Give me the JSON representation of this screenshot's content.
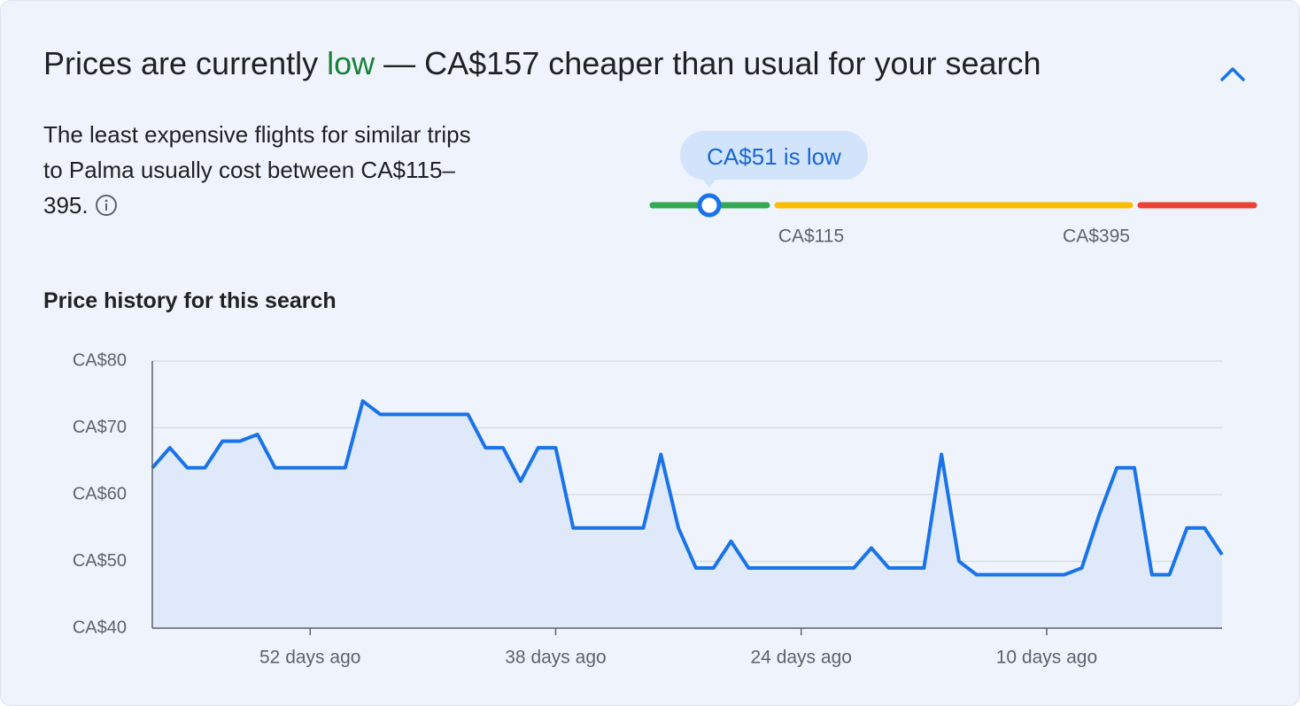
{
  "header": {
    "title_start": "Prices are currently ",
    "title_status": "low",
    "title_end": " — CA$157 cheaper than usual for your search"
  },
  "summary": {
    "text": "The least expensive flights for similar trips to Palma usually cost between CA$115–395."
  },
  "price_range": {
    "bubble": "CA$51 is low",
    "low_label": "CA$115",
    "high_label": "CA$395"
  },
  "chart_heading": "Price history for this search",
  "chart_data": {
    "type": "line",
    "x": [
      61,
      60,
      59,
      58,
      57,
      56,
      55,
      54,
      53,
      52,
      51,
      50,
      49,
      48,
      47,
      46,
      45,
      44,
      43,
      42,
      41,
      40,
      39,
      38,
      37,
      36,
      35,
      34,
      33,
      32,
      31,
      30,
      29,
      28,
      27,
      26,
      25,
      24,
      23,
      22,
      21,
      20,
      19,
      18,
      17,
      16,
      15,
      14,
      13,
      12,
      11,
      10,
      9,
      8,
      7,
      6,
      5,
      4,
      3,
      2,
      1,
      0
    ],
    "values": [
      64,
      67,
      64,
      64,
      68,
      68,
      69,
      64,
      64,
      64,
      64,
      64,
      74,
      72,
      72,
      72,
      72,
      72,
      72,
      67,
      67,
      62,
      67,
      67,
      55,
      55,
      55,
      55,
      55,
      66,
      55,
      49,
      49,
      53,
      49,
      49,
      49,
      49,
      49,
      49,
      49,
      52,
      49,
      49,
      49,
      66,
      50,
      48,
      48,
      48,
      48,
      48,
      48,
      49,
      57,
      64,
      64,
      48,
      48,
      55,
      55,
      51
    ],
    "color": "#1a73e8",
    "area_color": "#dfe9f9",
    "xlim": [
      61,
      0
    ],
    "xticks": [
      {
        "value": 52,
        "label": "52 days ago"
      },
      {
        "value": 38,
        "label": "38 days ago"
      },
      {
        "value": 24,
        "label": "24 days ago"
      },
      {
        "value": 10,
        "label": "10 days ago"
      }
    ],
    "ylim": [
      40,
      80
    ],
    "yticks": [
      {
        "value": 40,
        "label": "CA$40"
      },
      {
        "value": 50,
        "label": "CA$50"
      },
      {
        "value": 60,
        "label": "CA$60"
      },
      {
        "value": 70,
        "label": "CA$70"
      },
      {
        "value": 80,
        "label": "CA$80"
      }
    ],
    "grid": true
  }
}
